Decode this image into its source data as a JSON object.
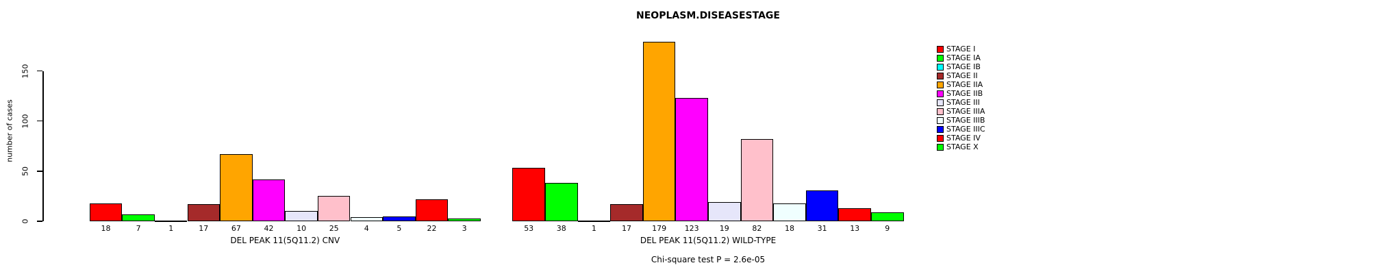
{
  "chart_data": {
    "type": "bar",
    "title": "NEOPLASM.DISEASESTAGE",
    "ylabel": "number of cases",
    "xlabel": "",
    "ylim": [
      0,
      185
    ],
    "yticks": [
      0,
      50,
      100,
      150
    ],
    "grid": false,
    "legend_position": "right",
    "series": [
      {
        "name": "STAGE I",
        "color": "#FF0000"
      },
      {
        "name": "STAGE IA",
        "color": "#00FF00"
      },
      {
        "name": "STAGE IB",
        "color": "#00FFFF"
      },
      {
        "name": "STAGE II",
        "color": "#A52A2A"
      },
      {
        "name": "STAGE IIA",
        "color": "#FFA500"
      },
      {
        "name": "STAGE IIB",
        "color": "#FF00FF"
      },
      {
        "name": "STAGE III",
        "color": "#E6E6FA"
      },
      {
        "name": "STAGE IIIA",
        "color": "#FFC0CB"
      },
      {
        "name": "STAGE IIIB",
        "color": "#F0FFFF"
      },
      {
        "name": "STAGE IIIC",
        "color": "#0000FF"
      },
      {
        "name": "STAGE IV",
        "color": "#FF0000"
      },
      {
        "name": "STAGE X",
        "color": "#00FF00"
      }
    ],
    "groups": [
      {
        "label": "DEL PEAK 11(5Q11.2) CNV",
        "values": [
          18,
          7,
          1,
          17,
          67,
          42,
          10,
          25,
          4,
          5,
          22,
          3
        ]
      },
      {
        "label": "DEL PEAK 11(5Q11.2) WILD-TYPE",
        "values": [
          53,
          38,
          1,
          17,
          179,
          123,
          19,
          82,
          18,
          31,
          13,
          9
        ]
      }
    ],
    "annotation": "Chi-square test P = 2.6e-05"
  }
}
